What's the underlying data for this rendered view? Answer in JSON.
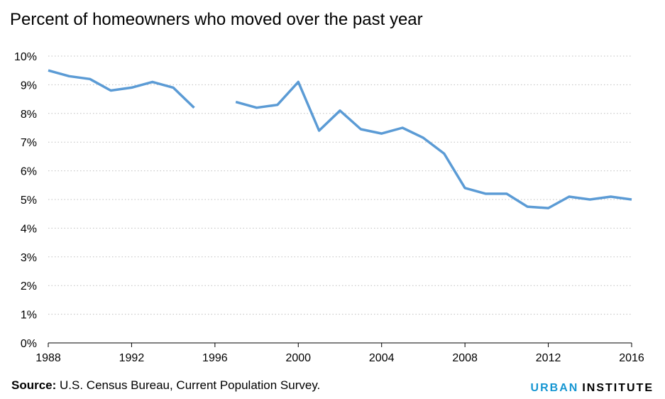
{
  "title": "Percent of homeowners who moved over the past year",
  "source": {
    "label": "Source:",
    "text": " U.S.  Census Bureau, Current Population Survey."
  },
  "brand": {
    "part1": "URBAN",
    "part2": "INSTITUTE"
  },
  "colors": {
    "line": "#5b9bd5",
    "grid": "#bfbfbf",
    "axis": "#000000"
  },
  "chart_data": {
    "type": "line",
    "title": "Percent of homeowners who moved over the past year",
    "xlabel": "",
    "ylabel": "",
    "xlim": [
      1988,
      2016
    ],
    "ylim": [
      0,
      10
    ],
    "x_ticks": [
      "1988",
      "1992",
      "1996",
      "2000",
      "2004",
      "2008",
      "2012",
      "2016"
    ],
    "y_ticks": [
      "0%",
      "1%",
      "2%",
      "3%",
      "4%",
      "5%",
      "6%",
      "7%",
      "8%",
      "9%",
      "10%"
    ],
    "grid": true,
    "series": [
      {
        "x": [
          1988,
          1989,
          1990,
          1991,
          1992,
          1993,
          1994,
          1995,
          1996,
          1997,
          1998,
          1999,
          2000,
          2001,
          2002,
          2003,
          2004,
          2005,
          2006,
          2007,
          2008,
          2009,
          2010,
          2011,
          2012,
          2013,
          2014,
          2015,
          2016
        ],
        "values": [
          9.5,
          9.3,
          9.2,
          8.8,
          8.9,
          9.1,
          8.9,
          8.2,
          null,
          8.4,
          8.2,
          8.3,
          9.1,
          7.4,
          8.1,
          7.45,
          7.3,
          7.5,
          7.15,
          6.6,
          5.4,
          5.2,
          5.2,
          4.75,
          4.7,
          5.1,
          5.0,
          5.1,
          5.0
        ]
      }
    ]
  }
}
